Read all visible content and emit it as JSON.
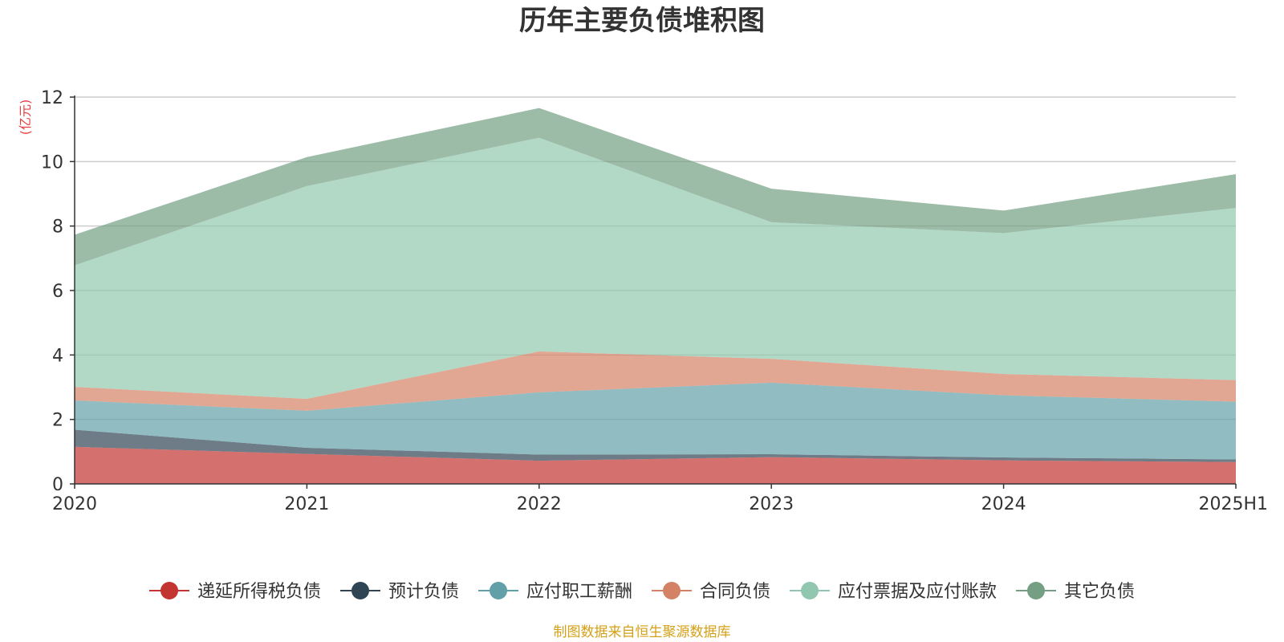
{
  "chart_data": {
    "type": "area",
    "stacked": true,
    "title": "历年主要负债堆积图",
    "unit_label": "(亿元)",
    "source_note": "制图数据来自恒生聚源数据库",
    "categories": [
      "2020",
      "2021",
      "2022",
      "2023",
      "2024",
      "2025H1"
    ],
    "ylim": [
      0,
      12
    ],
    "yticks": [
      0,
      2,
      4,
      6,
      8,
      10,
      12
    ],
    "grid": true,
    "legend_position": "bottom",
    "series": [
      {
        "name": "递延所得税负债",
        "color": "#c23531",
        "legend_color": "#c23531",
        "values": [
          1.15,
          0.93,
          0.72,
          0.83,
          0.73,
          0.68
        ]
      },
      {
        "name": "预计负债",
        "color": "#2f4554",
        "legend_color": "#2f4554",
        "values": [
          0.53,
          0.19,
          0.19,
          0.09,
          0.09,
          0.08
        ]
      },
      {
        "name": "应付职工薪酬",
        "color": "#61a0a8",
        "legend_color": "#61a0a8",
        "values": [
          0.91,
          1.15,
          1.93,
          2.22,
          1.93,
          1.79
        ]
      },
      {
        "name": "合同负债",
        "color": "#d48265",
        "legend_color": "#d48265",
        "values": [
          0.42,
          0.37,
          1.27,
          0.74,
          0.66,
          0.67
        ]
      },
      {
        "name": "应付票据及应付账款",
        "color": "#91c7ae",
        "legend_color": "#91c7ae",
        "values": [
          3.77,
          6.6,
          6.63,
          4.24,
          4.37,
          5.34
        ]
      },
      {
        "name": "其它负债",
        "color": "#749f83",
        "legend_color": "#749f83",
        "values": [
          0.95,
          0.9,
          0.92,
          1.04,
          0.7,
          1.05
        ]
      }
    ],
    "colors": {
      "title": "#333333",
      "unit_label": "#e83e3e",
      "source_note": "#d4a017",
      "axis": "#333333",
      "grid": "#cccccc"
    }
  }
}
